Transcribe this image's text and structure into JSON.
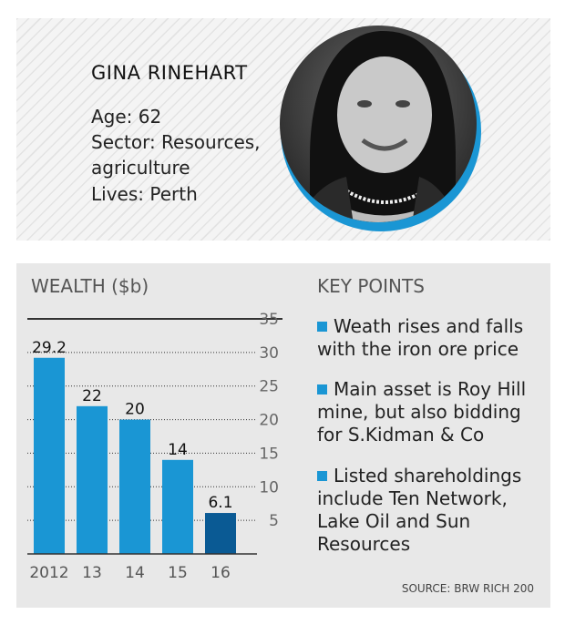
{
  "profile": {
    "name": "GINA RINEHART",
    "facts": [
      "Age: 62",
      "Sector: Resources,",
      "agriculture",
      "Lives: Perth"
    ]
  },
  "chart_title": "WEALTH ($b)",
  "chart_data": {
    "type": "bar",
    "categories": [
      "2012",
      "13",
      "14",
      "15",
      "16"
    ],
    "values": [
      29.2,
      22,
      20,
      14,
      6.1
    ],
    "value_labels": [
      "29.2",
      "22",
      "20",
      "14",
      "6.1"
    ],
    "yticks": [
      "5",
      "10",
      "15",
      "20",
      "25",
      "30",
      "35"
    ],
    "ylim": [
      0,
      35
    ],
    "grid": true,
    "y_axis_side": "right",
    "bar_color": "#1a96d4",
    "highlight_color": "#0a5a94",
    "highlight_index": 4
  },
  "key_points": {
    "title": "KEY POINTS",
    "items": [
      [
        "Weath rises and falls",
        "with the iron ore price"
      ],
      [
        "Main asset is Roy Hill",
        "mine, but also bidding",
        "for S.Kidman & Co"
      ],
      [
        "Listed shareholdings",
        "include Ten Network,",
        "Lake Oil and Sun",
        "Resources"
      ]
    ]
  },
  "source": "SOURCE: BRW RICH 200",
  "colors": {
    "accent": "#1a96d4",
    "panel": "#e8e8e8"
  }
}
